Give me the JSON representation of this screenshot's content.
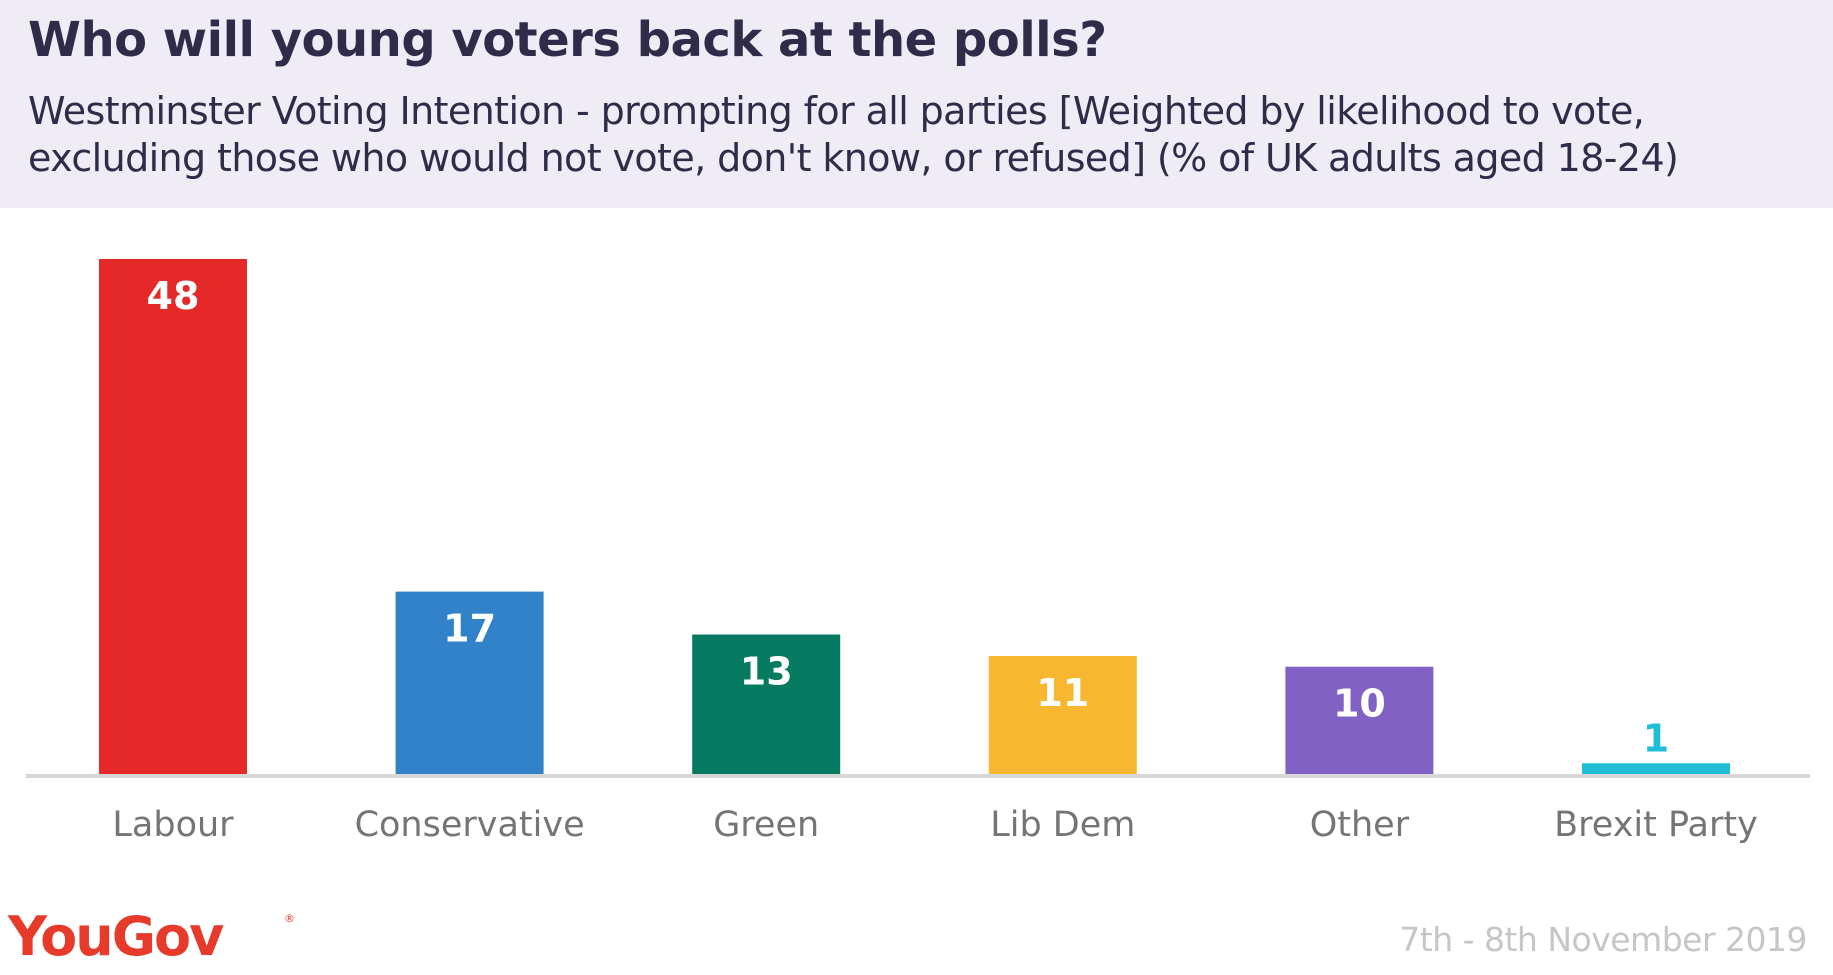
{
  "header": {
    "title": "Who will young voters back at the polls?",
    "subtitle": "Westminster Voting Intention - prompting for all parties [Weighted by likelihood to vote, excluding those who would not vote, don't know, or refused] (% of UK adults aged 18-24)"
  },
  "footer": {
    "logo_text": "YouGov",
    "logo_mark": "®",
    "date": "7th - 8th November 2019"
  },
  "chart_data": {
    "type": "bar",
    "title": "Who will young voters back at the polls?",
    "subtitle": "Westminster Voting Intention - prompting for all parties [Weighted by likelihood to vote, excluding those who would not vote, don't know, or refused] (% of UK adults aged 18-24)",
    "xlabel": "",
    "ylabel": "",
    "ylim": [
      0,
      48
    ],
    "grid": false,
    "legend": "none",
    "categories": [
      "Labour",
      "Conservative",
      "Green",
      "Lib Dem",
      "Other",
      "Brexit Party"
    ],
    "values": [
      48,
      17,
      13,
      11,
      10,
      1
    ],
    "colors": [
      "#e52828",
      "#3182c8",
      "#077a62",
      "#f8b731",
      "#8162c4",
      "#1fbed6"
    ],
    "value_label_colors": [
      "#ffffff",
      "#ffffff",
      "#ffffff",
      "#ffffff",
      "#ffffff",
      "#1fbed6"
    ],
    "axis_color": "#d7d7d7",
    "category_label_color": "#757575"
  }
}
